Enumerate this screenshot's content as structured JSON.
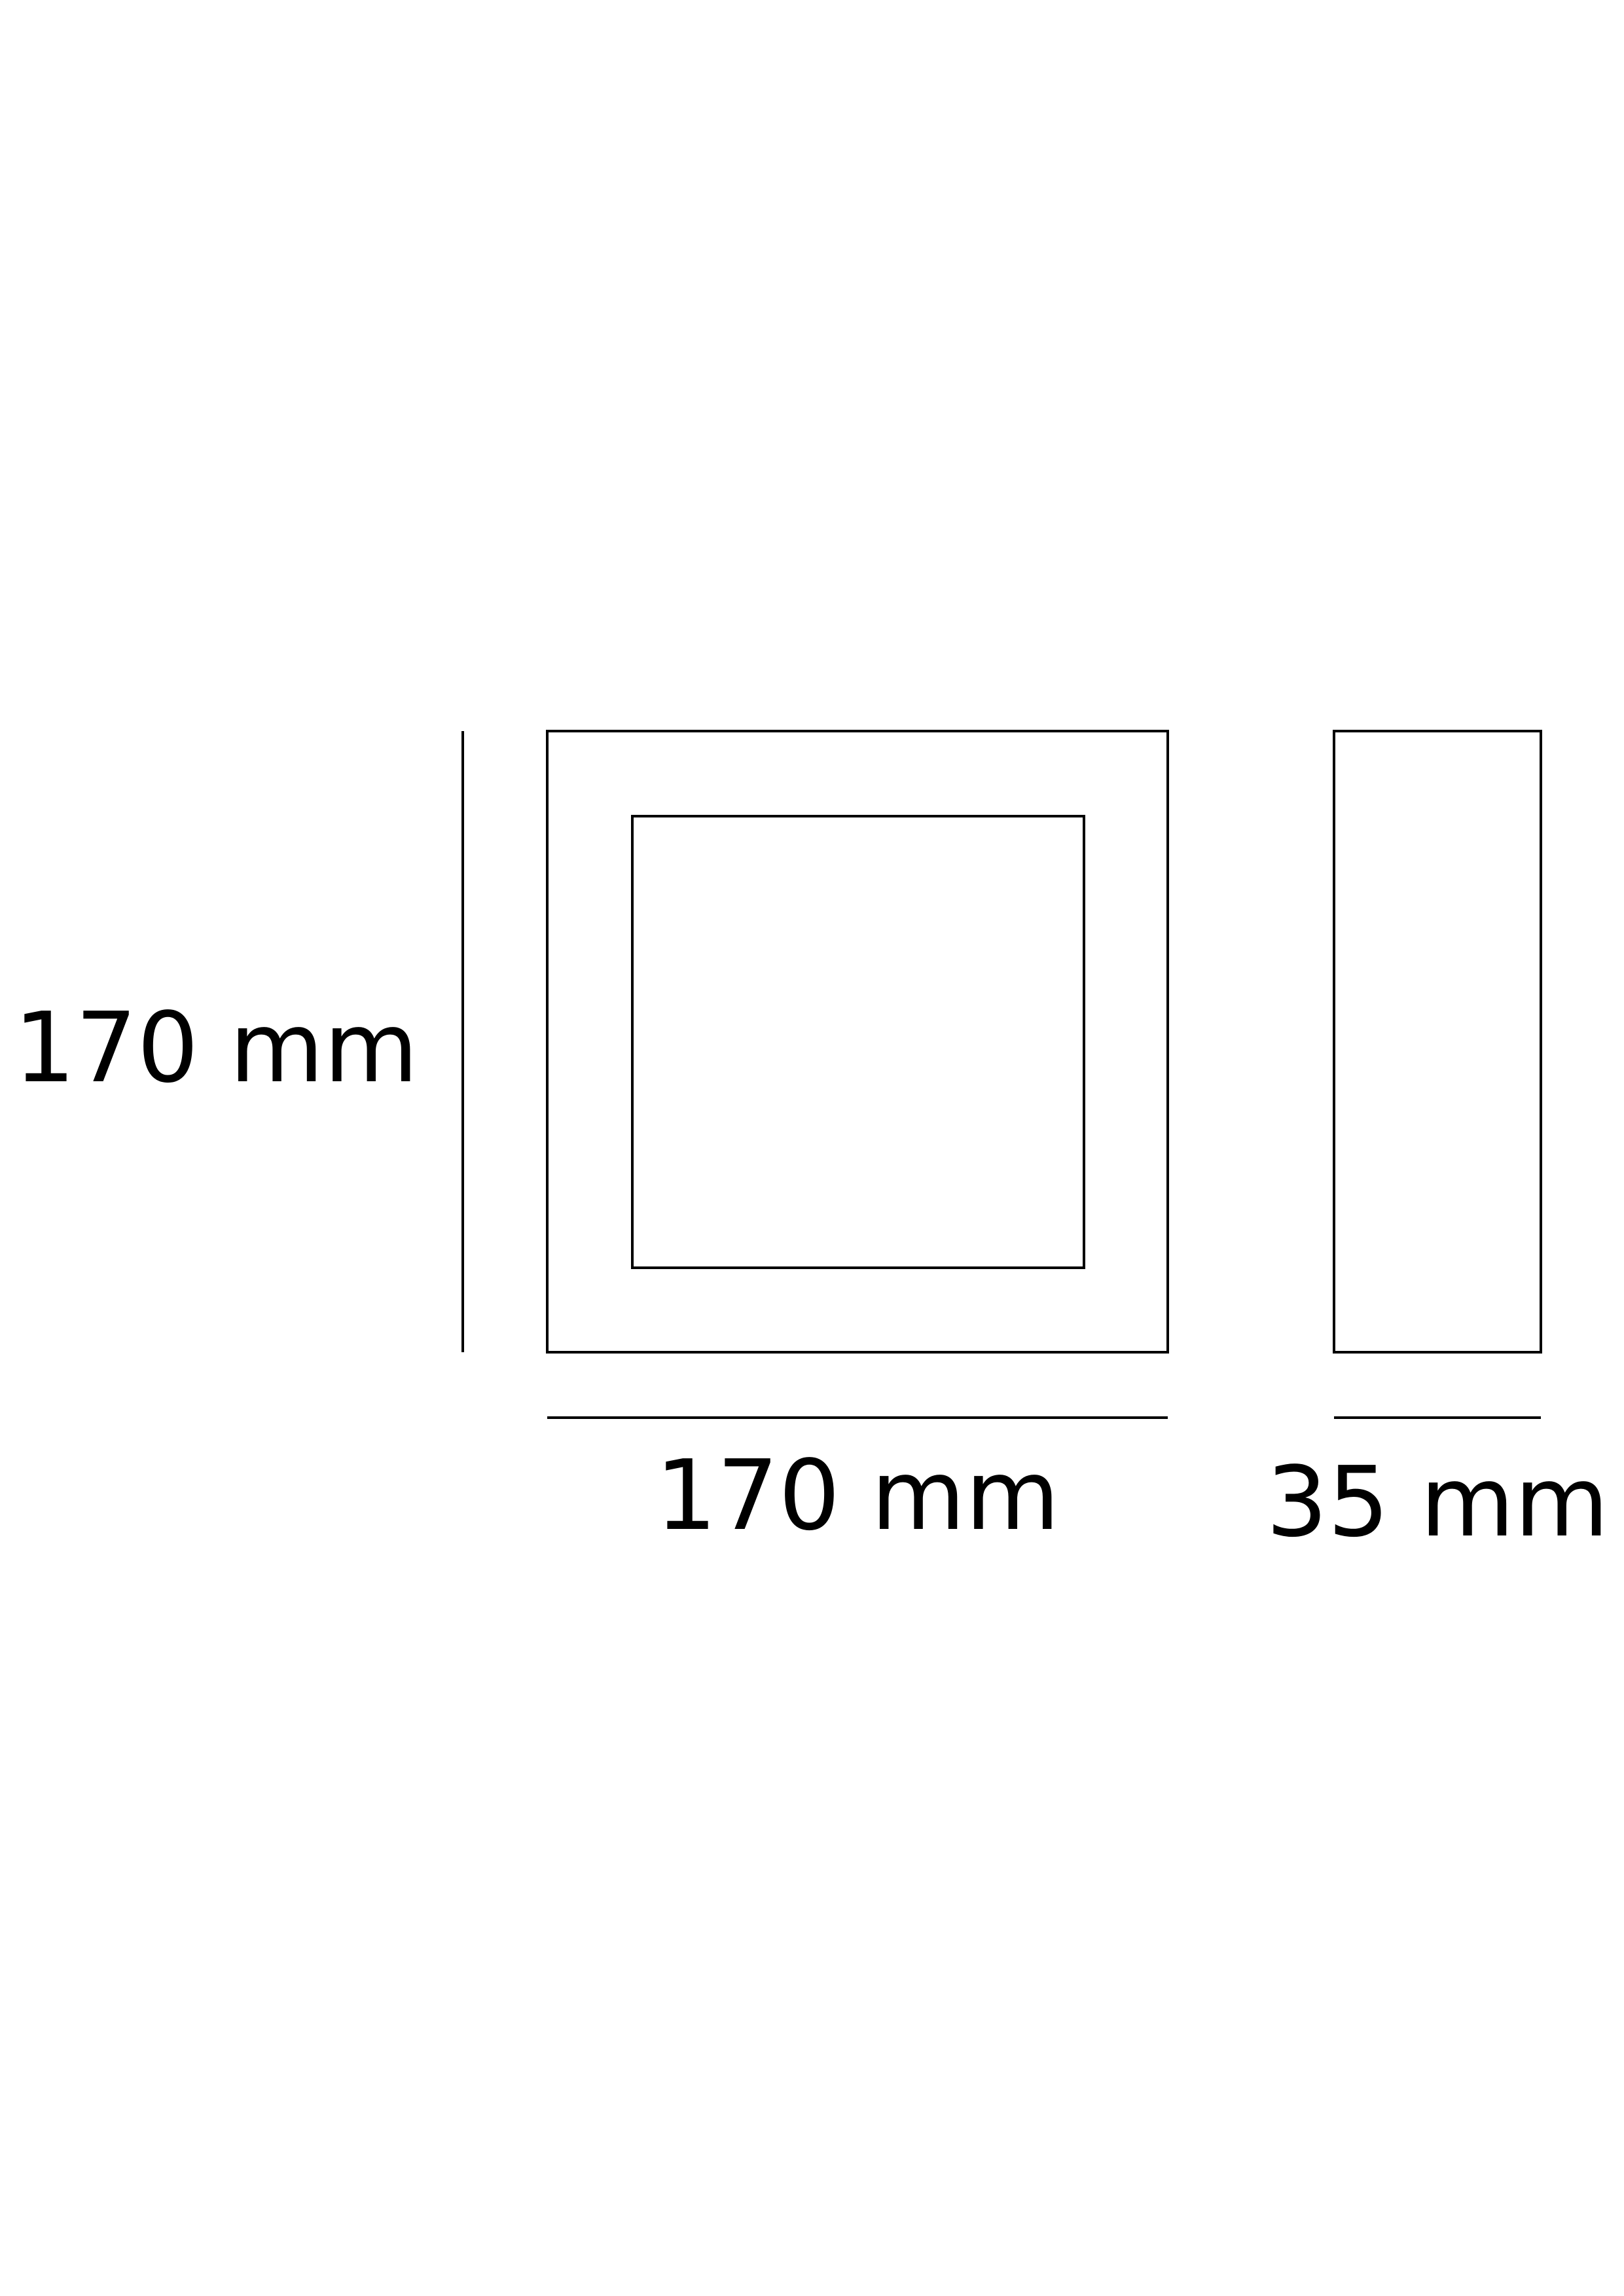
{
  "drawing": {
    "stroke_color": "#000000",
    "background_color": "#ffffff"
  },
  "dimensions": {
    "height_label": "170 mm",
    "width_label": "170 mm",
    "depth_label": "35 mm"
  }
}
